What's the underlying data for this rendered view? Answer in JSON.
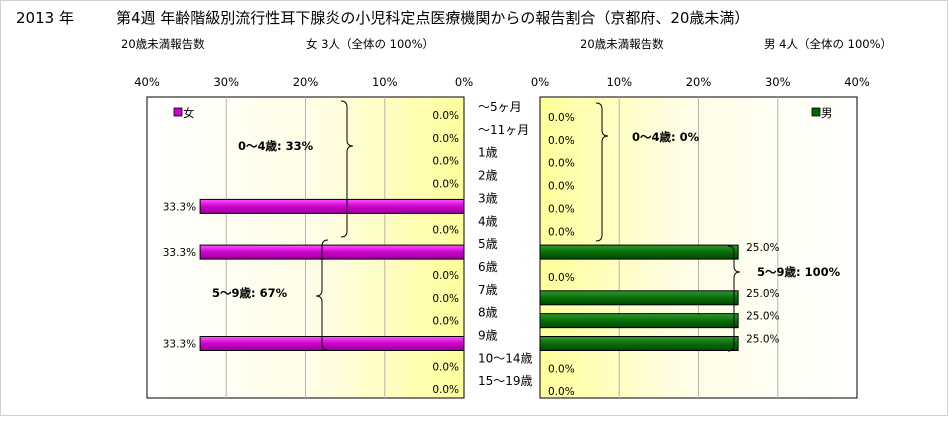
{
  "header": {
    "year": "2013 年",
    "title": "第4週 年齢階級別流行性耳下腺炎の小児科定点医療機関からの報告割合（京都府、20歳未満）"
  },
  "chart_data": [
    {
      "type": "bar",
      "orientation": "horizontal",
      "direction": "right-to-left",
      "series_label": "女",
      "count_label": "20歳未満報告数",
      "count_text": "女 3人（全体の 100%）",
      "color": "#cc00cc",
      "xlim": [
        0,
        40
      ],
      "ticks": [
        "40%",
        "30%",
        "20%",
        "10%",
        "0%"
      ],
      "categories": [
        "～5ヶ月",
        "～11ヶ月",
        "1歳",
        "2歳",
        "3歳",
        "4歳",
        "5歳",
        "6歳",
        "7歳",
        "8歳",
        "9歳",
        "10～14歳",
        "15～19歳"
      ],
      "values": [
        0,
        0,
        0,
        0,
        33.3,
        0,
        33.3,
        0,
        0,
        0,
        33.3,
        0,
        0
      ],
      "value_labels": [
        "0.0%",
        "0.0%",
        "0.0%",
        "0.0%",
        "33.3%",
        "0.0%",
        "33.3%",
        "0.0%",
        "0.0%",
        "0.0%",
        "33.3%",
        "0.0%",
        "0.0%"
      ],
      "annotations": [
        {
          "text": "0～4歳: 33%",
          "from": 0,
          "to": 5
        },
        {
          "text": "5～9歳: 67%",
          "from": 6,
          "to": 10
        }
      ],
      "legend": "top-left",
      "background": "yellow gradient"
    },
    {
      "type": "bar",
      "orientation": "horizontal",
      "direction": "left-to-right",
      "series_label": "男",
      "count_label": "20歳未満報告数",
      "count_text": "男 4人（全体の 100%）",
      "color": "#006600",
      "xlim": [
        0,
        40
      ],
      "ticks": [
        "0%",
        "10%",
        "20%",
        "30%",
        "40%"
      ],
      "categories": [
        "～5ヶ月",
        "～11ヶ月",
        "1歳",
        "2歳",
        "3歳",
        "4歳",
        "5歳",
        "6歳",
        "7歳",
        "8歳",
        "9歳",
        "10～14歳",
        "15～19歳"
      ],
      "values": [
        0,
        0,
        0,
        0,
        0,
        0,
        25,
        0,
        25,
        25,
        25,
        0,
        0
      ],
      "value_labels": [
        "0.0%",
        "0.0%",
        "0.0%",
        "0.0%",
        "0.0%",
        "0.0%",
        "25.0%",
        "0.0%",
        "25.0%",
        "25.0%",
        "25.0%",
        "0.0%",
        "0.0%"
      ],
      "annotations": [
        {
          "text": "0～4歳:  0%",
          "from": 0,
          "to": 5
        },
        {
          "text": "5～9歳: 100%",
          "from": 6,
          "to": 10
        }
      ],
      "legend": "top-right",
      "background": "yellow gradient"
    }
  ]
}
